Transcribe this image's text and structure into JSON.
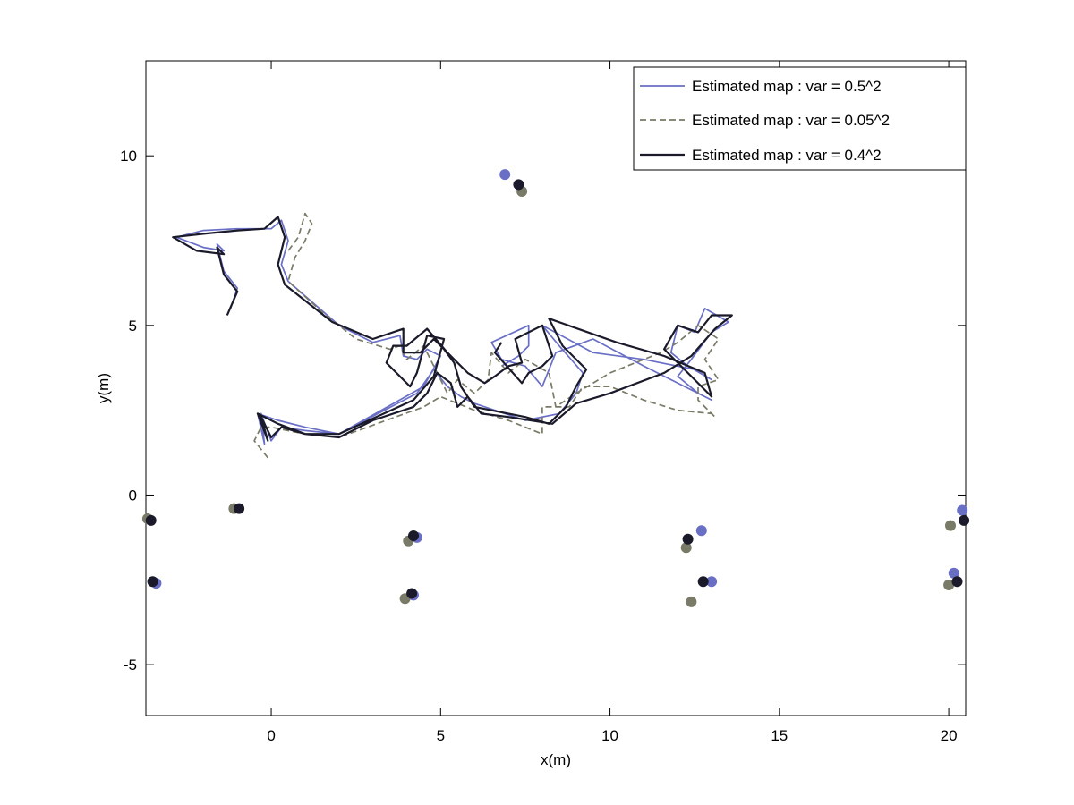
{
  "chart_data": {
    "type": "line",
    "xlabel": "x(m)",
    "ylabel": "y(m)",
    "xlim": [
      -3.7,
      20.5
    ],
    "ylim": [
      -6.5,
      12.8
    ],
    "xticks": [
      0,
      5,
      10,
      15,
      20
    ],
    "xtick_labels": [
      "0",
      "5",
      "10",
      "15",
      "20"
    ],
    "yticks": [
      -5,
      0,
      5,
      10
    ],
    "ytick_labels": [
      "-5",
      "0",
      "5",
      "10"
    ],
    "grid": false,
    "legend_position": "top-right",
    "series": [
      {
        "name": "Estimated map : var = 0.5^2",
        "color": "#6a6fc6",
        "dash": "solid",
        "path": [
          [
            -1.2,
            5.5
          ],
          [
            -1.0,
            6.1
          ],
          [
            -1.4,
            6.6
          ],
          [
            -1.6,
            7.4
          ],
          [
            -1.4,
            7.2
          ],
          [
            -2.0,
            7.3
          ],
          [
            -2.8,
            7.6
          ],
          [
            -2.0,
            7.8
          ],
          [
            -1.0,
            7.85
          ],
          [
            0.0,
            7.85
          ],
          [
            0.3,
            8.1
          ],
          [
            0.5,
            7.5
          ],
          [
            0.3,
            6.8
          ],
          [
            0.5,
            6.3
          ],
          [
            2.0,
            5.0
          ],
          [
            3.0,
            4.5
          ],
          [
            3.8,
            4.7
          ],
          [
            3.9,
            4.1
          ],
          [
            4.3,
            4.0
          ],
          [
            4.6,
            4.3
          ],
          [
            5.0,
            4.1
          ],
          [
            4.5,
            3.2
          ],
          [
            2.0,
            1.8
          ],
          [
            1.0,
            1.9
          ],
          [
            0.3,
            2.0
          ],
          [
            0.0,
            1.6
          ],
          [
            -0.3,
            2.4
          ],
          [
            -0.2,
            1.5
          ],
          [
            -0.4,
            2.4
          ],
          [
            0.2,
            2.2
          ],
          [
            1.0,
            2.0
          ],
          [
            2.0,
            1.8
          ],
          [
            4.3,
            3.0
          ],
          [
            4.8,
            3.7
          ],
          [
            5.2,
            3.2
          ],
          [
            5.6,
            2.9
          ],
          [
            6.0,
            2.7
          ],
          [
            7.5,
            2.2
          ],
          [
            8.5,
            2.4
          ],
          [
            9.0,
            3.0
          ],
          [
            9.2,
            3.6
          ],
          [
            8.5,
            4.4
          ],
          [
            8.0,
            5.0
          ],
          [
            9.5,
            4.2
          ],
          [
            11.0,
            4.0
          ],
          [
            12.5,
            3.7
          ],
          [
            13.0,
            3.4
          ],
          [
            12.3,
            3.8
          ],
          [
            11.8,
            4.2
          ],
          [
            12.0,
            5.0
          ],
          [
            12.5,
            4.8
          ],
          [
            12.8,
            5.5
          ],
          [
            13.5,
            5.1
          ],
          [
            13.0,
            4.8
          ],
          [
            12.4,
            4.0
          ],
          [
            12.0,
            3.5
          ],
          [
            12.6,
            3.0
          ],
          [
            13.0,
            2.8
          ],
          [
            11.0,
            3.8
          ],
          [
            9.5,
            4.6
          ],
          [
            8.4,
            4.2
          ],
          [
            8.0,
            3.2
          ],
          [
            7.5,
            3.8
          ],
          [
            6.8,
            4.0
          ],
          [
            6.5,
            4.5
          ],
          [
            7.6,
            5.0
          ],
          [
            7.6,
            4.4
          ],
          [
            7.3,
            4.1
          ],
          [
            6.8,
            3.8
          ]
        ]
      },
      {
        "name": "Estimated map : var = 0.05^2",
        "color": "#7a7a68",
        "dash": "dashed",
        "path": [
          [
            -0.1,
            1.1
          ],
          [
            -0.5,
            1.6
          ],
          [
            -0.3,
            2.0
          ],
          [
            0.0,
            2.0
          ],
          [
            1.0,
            1.8
          ],
          [
            2.0,
            1.7
          ],
          [
            4.5,
            2.6
          ],
          [
            5.0,
            2.9
          ],
          [
            6.0,
            2.5
          ],
          [
            7.0,
            2.2
          ],
          [
            8.0,
            1.8
          ],
          [
            8.0,
            2.6
          ],
          [
            8.8,
            2.6
          ],
          [
            9.2,
            3.2
          ],
          [
            10.0,
            3.2
          ],
          [
            11.0,
            2.8
          ],
          [
            12.0,
            2.5
          ],
          [
            13.0,
            2.4
          ],
          [
            13.1,
            2.3
          ],
          [
            12.6,
            2.8
          ],
          [
            12.6,
            3.2
          ],
          [
            13.2,
            3.4
          ],
          [
            12.8,
            4.0
          ],
          [
            13.2,
            4.6
          ],
          [
            12.6,
            5.0
          ],
          [
            12.0,
            4.5
          ],
          [
            11.5,
            4.2
          ],
          [
            10.0,
            3.6
          ],
          [
            9.0,
            3.0
          ],
          [
            8.4,
            2.6
          ],
          [
            8.2,
            3.6
          ],
          [
            7.5,
            4.0
          ],
          [
            7.0,
            3.6
          ],
          [
            6.5,
            4.2
          ],
          [
            6.4,
            3.4
          ],
          [
            6.0,
            3.0
          ],
          [
            5.5,
            3.4
          ],
          [
            5.2,
            3.0
          ],
          [
            4.8,
            3.8
          ],
          [
            4.5,
            4.4
          ],
          [
            4.0,
            4.0
          ],
          [
            3.8,
            4.4
          ],
          [
            3.5,
            4.3
          ],
          [
            2.5,
            4.6
          ],
          [
            1.5,
            5.4
          ],
          [
            0.5,
            6.3
          ],
          [
            0.7,
            7.0
          ],
          [
            1.0,
            7.5
          ],
          [
            1.2,
            8.0
          ],
          [
            1.0,
            8.3
          ],
          [
            0.8,
            7.6
          ],
          [
            0.5,
            7.2
          ]
        ]
      },
      {
        "name": "Estimated map : var = 0.4^2",
        "color": "#1a1a2a",
        "dash": "solid",
        "path": [
          [
            -1.3,
            5.3
          ],
          [
            -1.0,
            6.0
          ],
          [
            -1.4,
            6.5
          ],
          [
            -1.6,
            7.3
          ],
          [
            -1.4,
            7.1
          ],
          [
            -2.2,
            7.2
          ],
          [
            -2.9,
            7.6
          ],
          [
            -2.0,
            7.7
          ],
          [
            -1.0,
            7.8
          ],
          [
            -0.2,
            7.85
          ],
          [
            0.2,
            8.2
          ],
          [
            0.4,
            7.6
          ],
          [
            0.2,
            6.8
          ],
          [
            0.4,
            6.2
          ],
          [
            1.8,
            5.1
          ],
          [
            3.0,
            4.6
          ],
          [
            3.9,
            4.9
          ],
          [
            3.9,
            4.2
          ],
          [
            4.4,
            4.2
          ],
          [
            4.8,
            4.6
          ],
          [
            5.1,
            4.3
          ],
          [
            5.4,
            3.9
          ],
          [
            5.6,
            3.2
          ],
          [
            6.0,
            2.6
          ],
          [
            7.5,
            2.3
          ],
          [
            8.2,
            2.1
          ],
          [
            8.7,
            2.6
          ],
          [
            9.0,
            3.2
          ],
          [
            9.3,
            3.7
          ],
          [
            8.6,
            4.4
          ],
          [
            8.2,
            5.2
          ],
          [
            10.2,
            4.5
          ],
          [
            11.6,
            4.1
          ],
          [
            12.8,
            3.6
          ],
          [
            13.0,
            2.9
          ],
          [
            12.2,
            3.7
          ],
          [
            11.6,
            4.3
          ],
          [
            12.0,
            5.0
          ],
          [
            12.6,
            4.8
          ],
          [
            13.0,
            5.3
          ],
          [
            13.6,
            5.3
          ],
          [
            13.1,
            4.9
          ],
          [
            12.4,
            4.1
          ],
          [
            11.6,
            3.6
          ],
          [
            10.0,
            3.0
          ],
          [
            9.0,
            2.7
          ],
          [
            8.3,
            2.1
          ],
          [
            7.0,
            2.3
          ],
          [
            6.2,
            2.4
          ],
          [
            5.8,
            2.9
          ],
          [
            5.5,
            2.6
          ],
          [
            5.3,
            3.3
          ],
          [
            4.9,
            3.6
          ],
          [
            4.6,
            3.0
          ],
          [
            4.2,
            2.6
          ],
          [
            3.0,
            2.2
          ],
          [
            2.0,
            1.7
          ],
          [
            1.0,
            1.8
          ],
          [
            0.3,
            2.0
          ],
          [
            0.0,
            1.7
          ],
          [
            -0.3,
            2.3
          ],
          [
            -0.1,
            1.6
          ],
          [
            -0.4,
            2.4
          ],
          [
            0.2,
            2.1
          ],
          [
            1.0,
            1.8
          ],
          [
            2.0,
            1.8
          ],
          [
            4.2,
            2.8
          ],
          [
            4.8,
            3.5
          ],
          [
            5.1,
            4.6
          ],
          [
            4.6,
            4.7
          ],
          [
            4.3,
            3.6
          ],
          [
            4.1,
            3.2
          ],
          [
            3.4,
            3.9
          ],
          [
            3.6,
            4.4
          ],
          [
            4.0,
            4.4
          ],
          [
            4.6,
            4.9
          ],
          [
            5.2,
            4.2
          ],
          [
            5.8,
            3.6
          ],
          [
            6.3,
            3.3
          ],
          [
            6.6,
            3.5
          ],
          [
            7.0,
            3.8
          ],
          [
            7.4,
            3.9
          ],
          [
            7.2,
            4.6
          ],
          [
            8.0,
            5.0
          ],
          [
            8.3,
            4.1
          ],
          [
            8.0,
            3.8
          ],
          [
            7.6,
            3.6
          ],
          [
            7.4,
            3.3
          ],
          [
            6.6,
            4.2
          ],
          [
            6.8,
            4.5
          ]
        ]
      }
    ],
    "landmarks": [
      {
        "series": 0,
        "points": [
          [
            6.9,
            9.45
          ],
          [
            -3.4,
            -2.6
          ],
          [
            4.3,
            -1.25
          ],
          [
            4.2,
            -2.95
          ],
          [
            12.7,
            -1.05
          ],
          [
            13.0,
            -2.55
          ],
          [
            20.4,
            -0.45
          ],
          [
            20.15,
            -2.3
          ]
        ]
      },
      {
        "series": 1,
        "points": [
          [
            7.4,
            8.95
          ],
          [
            -3.65,
            -0.7
          ],
          [
            -1.1,
            -0.4
          ],
          [
            4.05,
            -1.35
          ],
          [
            3.95,
            -3.05
          ],
          [
            12.25,
            -1.55
          ],
          [
            12.4,
            -3.15
          ],
          [
            20.05,
            -0.9
          ],
          [
            20.0,
            -2.65
          ]
        ]
      },
      {
        "series": 2,
        "points": [
          [
            7.3,
            9.15
          ],
          [
            -3.55,
            -0.75
          ],
          [
            -3.5,
            -2.55
          ],
          [
            -0.95,
            -0.4
          ],
          [
            4.2,
            -1.2
          ],
          [
            4.15,
            -2.9
          ],
          [
            12.3,
            -1.3
          ],
          [
            12.75,
            -2.55
          ],
          [
            20.45,
            -0.75
          ],
          [
            20.25,
            -2.55
          ]
        ]
      }
    ]
  }
}
